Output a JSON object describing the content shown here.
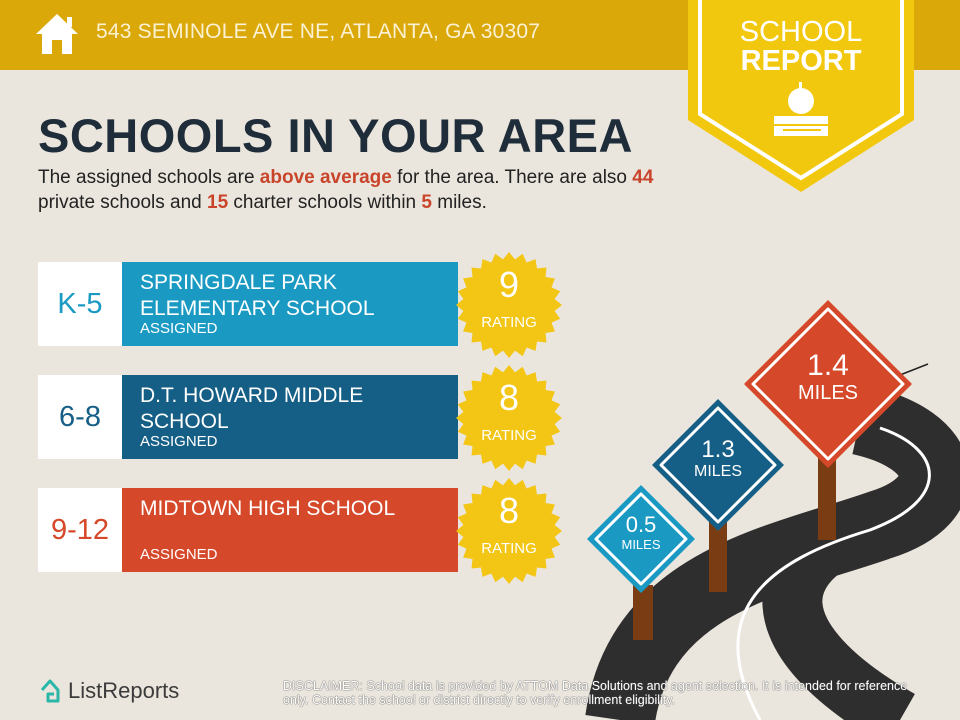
{
  "header": {
    "address": "543 SEMINOLE AVE NE, ATLANTA, GA 30307",
    "icon": "home-icon"
  },
  "banner": {
    "line1": "SCHOOL",
    "line2": "REPORT",
    "icon": "apple-on-books-icon"
  },
  "title": "SCHOOLS IN YOUR AREA",
  "summary": {
    "part1": "The assigned schools are ",
    "highlight1": "above average",
    "part2": " for the area. There are also ",
    "private_count": "44",
    "part3": " private schools and ",
    "charter_count": "15",
    "part4": " charter schools within ",
    "radius": "5",
    "part5": " miles."
  },
  "schools": [
    {
      "grades": "K-5",
      "name": "SPRINGDALE PARK ELEMENTARY SCHOOL",
      "status": "ASSIGNED",
      "rating": "9",
      "rating_label": "RATING",
      "color": "#1a9ac3",
      "distance": "0.5",
      "distance_unit": "MILES"
    },
    {
      "grades": "6-8",
      "name": "D.T. HOWARD MIDDLE SCHOOL",
      "status": "ASSIGNED",
      "rating": "8",
      "rating_label": "RATING",
      "color": "#155e86",
      "distance": "1.3",
      "distance_unit": "MILES"
    },
    {
      "grades": "9-12",
      "name": "MIDTOWN HIGH SCHOOL",
      "status": "ASSIGNED",
      "rating": "8",
      "rating_label": "RATING",
      "color": "#d5482a",
      "distance": "1.4",
      "distance_unit": "MILES"
    }
  ],
  "footer": {
    "logo": "ListReports",
    "disclaimer_label": "DISCLAIMER:",
    "disclaimer": " School data is provided by ATTOM Data Solutions and agent selection. It is intended for reference only. Contact the school or district directly to verify enrollment eligibility."
  },
  "colors": {
    "header": "#dba80a",
    "banner": "#f2c80f",
    "highlight": "#c8442a",
    "badge": "#f3c515",
    "background": "#ebe6dd",
    "road": "#2e2e2e",
    "post": "#7a3c12"
  }
}
